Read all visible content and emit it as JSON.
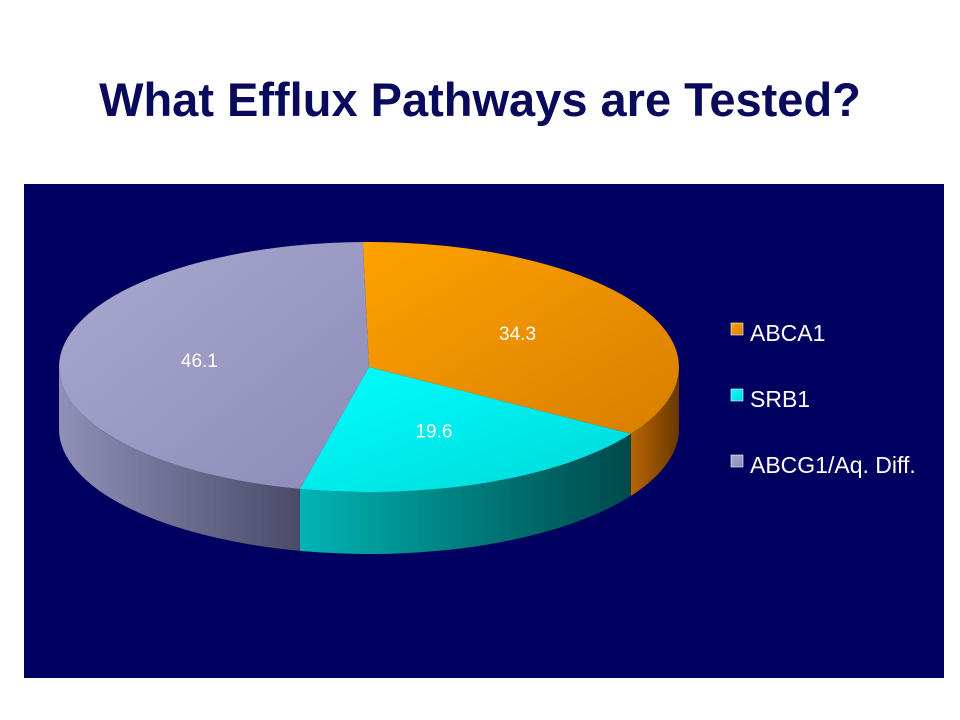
{
  "slide": {
    "title": "What Efflux Pathways are Tested?"
  },
  "colors": {
    "background": "#000060",
    "title": "#0a0a5c",
    "ABCA1": "#f39a00",
    "SRB1": "#00f0f0",
    "ABCG1/Aq. Diff.": "#9d9dc8"
  },
  "chart_data": {
    "type": "pie",
    "categories": [
      "ABCA1",
      "SRB1",
      "ABCG1/Aq. Diff."
    ],
    "values": [
      34.3,
      19.6,
      46.1
    ],
    "data_labels": [
      "34.3",
      "19.6",
      "46.1"
    ],
    "three_d": true,
    "legend": "right"
  }
}
